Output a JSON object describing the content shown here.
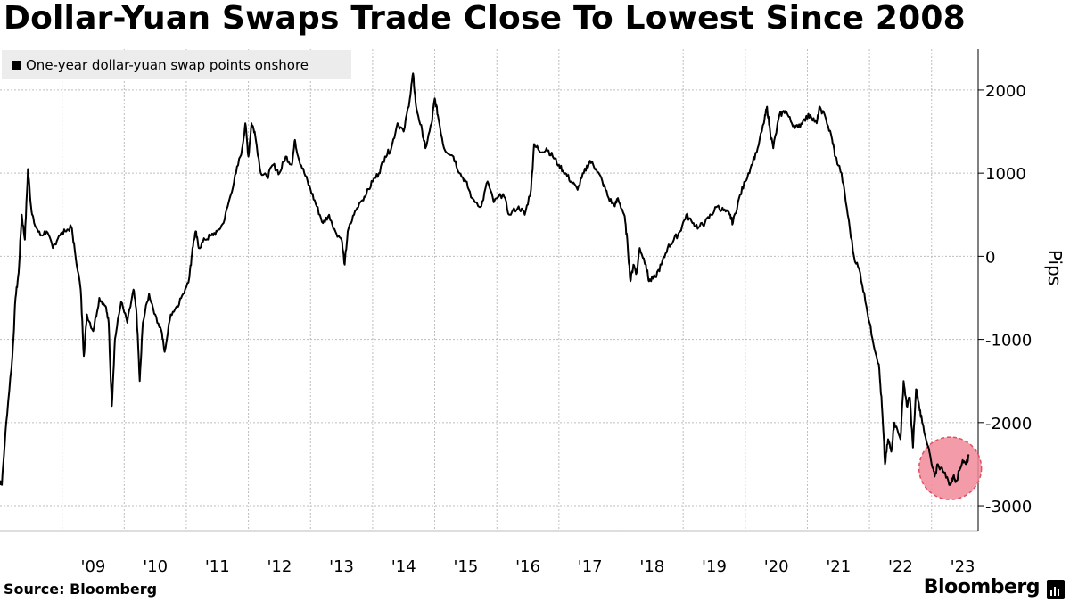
{
  "title": "Dollar-Yuan Swaps Trade Close To Lowest Since 2008",
  "legend_label": "One-year dollar-yuan swap points onshore",
  "source": "Source: Bloomberg",
  "brand": "Bloomberg",
  "colors": {
    "line": "#000000",
    "highlight_fill": "#f28a9a",
    "highlight_stroke": "#e0505f",
    "grid": "#bdbdbd"
  },
  "chart_data": {
    "type": "line",
    "title": "Dollar-Yuan Swaps Trade Close To Lowest Since 2008",
    "ylabel": "Pips",
    "xlabel": "",
    "ylim": [
      -3300,
      2600
    ],
    "xlim": [
      2008.0,
      2023.75
    ],
    "yticks": [
      2000,
      1000,
      0,
      -1000,
      -2000,
      -3000
    ],
    "ytick_labels": [
      "2000",
      "1000",
      "0",
      "-1000",
      "-2000",
      "-3000"
    ],
    "xticks": [
      2009,
      2010,
      2011,
      2012,
      2013,
      2014,
      2015,
      2016,
      2017,
      2018,
      2019,
      2020,
      2021,
      2022,
      2023
    ],
    "xtick_labels": [
      "'09",
      "'10",
      "'11",
      "'12",
      "'13",
      "'14",
      "'15",
      "'16",
      "'17",
      "'18",
      "'19",
      "'20",
      "'21",
      "'22",
      "'23"
    ],
    "series": [
      {
        "name": "One-year dollar-yuan swap points onshore",
        "points": [
          [
            2008.0,
            -2700
          ],
          [
            2008.03,
            -2750
          ],
          [
            2008.1,
            -2000
          ],
          [
            2008.2,
            -1200
          ],
          [
            2008.25,
            -500
          ],
          [
            2008.3,
            -200
          ],
          [
            2008.35,
            500
          ],
          [
            2008.4,
            200
          ],
          [
            2008.45,
            1050
          ],
          [
            2008.5,
            600
          ],
          [
            2008.55,
            400
          ],
          [
            2008.65,
            250
          ],
          [
            2008.75,
            300
          ],
          [
            2008.85,
            100
          ],
          [
            2008.95,
            250
          ],
          [
            2009.05,
            300
          ],
          [
            2009.15,
            350
          ],
          [
            2009.2,
            100
          ],
          [
            2009.3,
            -400
          ],
          [
            2009.35,
            -1200
          ],
          [
            2009.4,
            -700
          ],
          [
            2009.5,
            -900
          ],
          [
            2009.6,
            -500
          ],
          [
            2009.7,
            -600
          ],
          [
            2009.75,
            -800
          ],
          [
            2009.8,
            -1800
          ],
          [
            2009.85,
            -1000
          ],
          [
            2009.95,
            -550
          ],
          [
            2010.05,
            -800
          ],
          [
            2010.15,
            -400
          ],
          [
            2010.2,
            -700
          ],
          [
            2010.25,
            -1500
          ],
          [
            2010.3,
            -800
          ],
          [
            2010.4,
            -450
          ],
          [
            2010.5,
            -700
          ],
          [
            2010.6,
            -900
          ],
          [
            2010.65,
            -1150
          ],
          [
            2010.75,
            -700
          ],
          [
            2010.85,
            -600
          ],
          [
            2010.95,
            -450
          ],
          [
            2011.05,
            -250
          ],
          [
            2011.1,
            100
          ],
          [
            2011.15,
            300
          ],
          [
            2011.2,
            100
          ],
          [
            2011.3,
            200
          ],
          [
            2011.4,
            250
          ],
          [
            2011.5,
            300
          ],
          [
            2011.6,
            400
          ],
          [
            2011.7,
            700
          ],
          [
            2011.8,
            1000
          ],
          [
            2011.9,
            1300
          ],
          [
            2011.95,
            1600
          ],
          [
            2012.0,
            1200
          ],
          [
            2012.05,
            1600
          ],
          [
            2012.1,
            1500
          ],
          [
            2012.2,
            1000
          ],
          [
            2012.3,
            950
          ],
          [
            2012.4,
            1100
          ],
          [
            2012.5,
            1000
          ],
          [
            2012.6,
            1200
          ],
          [
            2012.7,
            1100
          ],
          [
            2012.75,
            1400
          ],
          [
            2012.8,
            1200
          ],
          [
            2012.9,
            1000
          ],
          [
            2013.0,
            800
          ],
          [
            2013.1,
            600
          ],
          [
            2013.2,
            400
          ],
          [
            2013.3,
            500
          ],
          [
            2013.4,
            300
          ],
          [
            2013.5,
            200
          ],
          [
            2013.55,
            -100
          ],
          [
            2013.6,
            300
          ],
          [
            2013.7,
            500
          ],
          [
            2013.8,
            650
          ],
          [
            2013.9,
            750
          ],
          [
            2014.0,
            900
          ],
          [
            2014.1,
            1000
          ],
          [
            2014.2,
            1200
          ],
          [
            2014.3,
            1300
          ],
          [
            2014.4,
            1600
          ],
          [
            2014.5,
            1500
          ],
          [
            2014.6,
            1900
          ],
          [
            2014.65,
            2200
          ],
          [
            2014.7,
            1800
          ],
          [
            2014.8,
            1500
          ],
          [
            2014.85,
            1300
          ],
          [
            2014.95,
            1600
          ],
          [
            2015.0,
            1900
          ],
          [
            2015.05,
            1700
          ],
          [
            2015.15,
            1300
          ],
          [
            2015.3,
            1200
          ],
          [
            2015.4,
            1000
          ],
          [
            2015.5,
            900
          ],
          [
            2015.6,
            700
          ],
          [
            2015.75,
            600
          ],
          [
            2015.85,
            900
          ],
          [
            2015.95,
            650
          ],
          [
            2016.1,
            750
          ],
          [
            2016.2,
            500
          ],
          [
            2016.35,
            600
          ],
          [
            2016.45,
            500
          ],
          [
            2016.55,
            800
          ],
          [
            2016.6,
            1350
          ],
          [
            2016.7,
            1250
          ],
          [
            2016.8,
            1300
          ],
          [
            2016.9,
            1200
          ],
          [
            2017.0,
            1100
          ],
          [
            2017.1,
            1000
          ],
          [
            2017.2,
            900
          ],
          [
            2017.3,
            800
          ],
          [
            2017.4,
            1000
          ],
          [
            2017.5,
            1150
          ],
          [
            2017.6,
            1050
          ],
          [
            2017.7,
            900
          ],
          [
            2017.8,
            700
          ],
          [
            2017.9,
            600
          ],
          [
            2017.95,
            700
          ],
          [
            2018.05,
            500
          ],
          [
            2018.1,
            200
          ],
          [
            2018.15,
            -300
          ],
          [
            2018.2,
            -100
          ],
          [
            2018.25,
            -200
          ],
          [
            2018.3,
            100
          ],
          [
            2018.4,
            -100
          ],
          [
            2018.45,
            -300
          ],
          [
            2018.55,
            -250
          ],
          [
            2018.65,
            -100
          ],
          [
            2018.75,
            100
          ],
          [
            2018.85,
            200
          ],
          [
            2018.95,
            300
          ],
          [
            2019.05,
            500
          ],
          [
            2019.15,
            400
          ],
          [
            2019.25,
            350
          ],
          [
            2019.35,
            400
          ],
          [
            2019.45,
            500
          ],
          [
            2019.55,
            600
          ],
          [
            2019.65,
            550
          ],
          [
            2019.75,
            500
          ],
          [
            2019.8,
            400
          ],
          [
            2019.9,
            700
          ],
          [
            2020.0,
            900
          ],
          [
            2020.1,
            1100
          ],
          [
            2020.2,
            1300
          ],
          [
            2020.3,
            1600
          ],
          [
            2020.35,
            1800
          ],
          [
            2020.4,
            1500
          ],
          [
            2020.45,
            1300
          ],
          [
            2020.55,
            1700
          ],
          [
            2020.65,
            1750
          ],
          [
            2020.75,
            1600
          ],
          [
            2020.85,
            1550
          ],
          [
            2020.95,
            1650
          ],
          [
            2021.05,
            1700
          ],
          [
            2021.15,
            1600
          ],
          [
            2021.2,
            1800
          ],
          [
            2021.3,
            1650
          ],
          [
            2021.4,
            1400
          ],
          [
            2021.45,
            1200
          ],
          [
            2021.55,
            1000
          ],
          [
            2021.65,
            500
          ],
          [
            2021.75,
            0
          ],
          [
            2021.85,
            -200
          ],
          [
            2021.95,
            -600
          ],
          [
            2022.05,
            -1000
          ],
          [
            2022.15,
            -1300
          ],
          [
            2022.2,
            -1800
          ],
          [
            2022.25,
            -2500
          ],
          [
            2022.3,
            -2200
          ],
          [
            2022.35,
            -2350
          ],
          [
            2022.4,
            -2000
          ],
          [
            2022.5,
            -2200
          ],
          [
            2022.55,
            -1500
          ],
          [
            2022.6,
            -1800
          ],
          [
            2022.65,
            -1700
          ],
          [
            2022.7,
            -2300
          ],
          [
            2022.75,
            -1600
          ],
          [
            2022.8,
            -1800
          ],
          [
            2022.85,
            -2000
          ],
          [
            2022.95,
            -2300
          ],
          [
            2023.0,
            -2500
          ],
          [
            2023.05,
            -2650
          ],
          [
            2023.1,
            -2500
          ],
          [
            2023.2,
            -2600
          ],
          [
            2023.3,
            -2750
          ],
          [
            2023.35,
            -2650
          ],
          [
            2023.4,
            -2700
          ],
          [
            2023.5,
            -2450
          ],
          [
            2023.55,
            -2500
          ],
          [
            2023.6,
            -2400
          ]
        ]
      }
    ],
    "annotations": [
      {
        "type": "highlight-circle",
        "center": [
          2023.3,
          -2550
        ],
        "label": ""
      }
    ]
  }
}
